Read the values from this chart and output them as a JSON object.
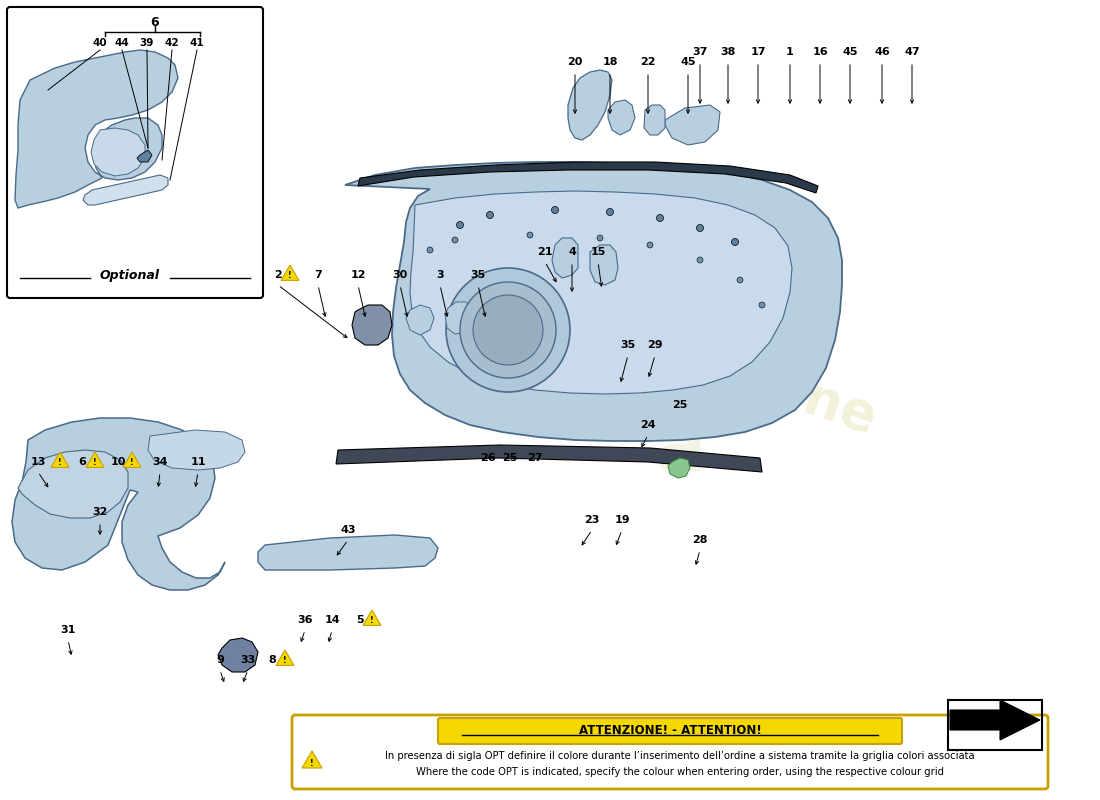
{
  "bg_color": "#ffffff",
  "door_fill": "#b8cfe0",
  "door_edge": "#4a6a8a",
  "dark_fill": "#8aaac0",
  "rail_fill": "#2a3a4a",
  "part_fill": "#b8cfe0",
  "speaker_fill": "#a0b8cc",
  "warning_color": "#f5d800",
  "warning_border": "#c8a000",
  "attention_bg": "#f5d800",
  "attention_border": "#c8a000",
  "watermark1": "#d4c870",
  "watermark2": "#c0b050",
  "note_text_it": "In presenza di sigla OPT definire il colore durante l’inserimento dell’ordine a sistema tramite la griglia colori associata",
  "note_text_en": "Where the code OPT is indicated, specify the colour when entering order, using the respective colour grid",
  "attention_text": "ATTENZIONE! - ATTENTION!"
}
